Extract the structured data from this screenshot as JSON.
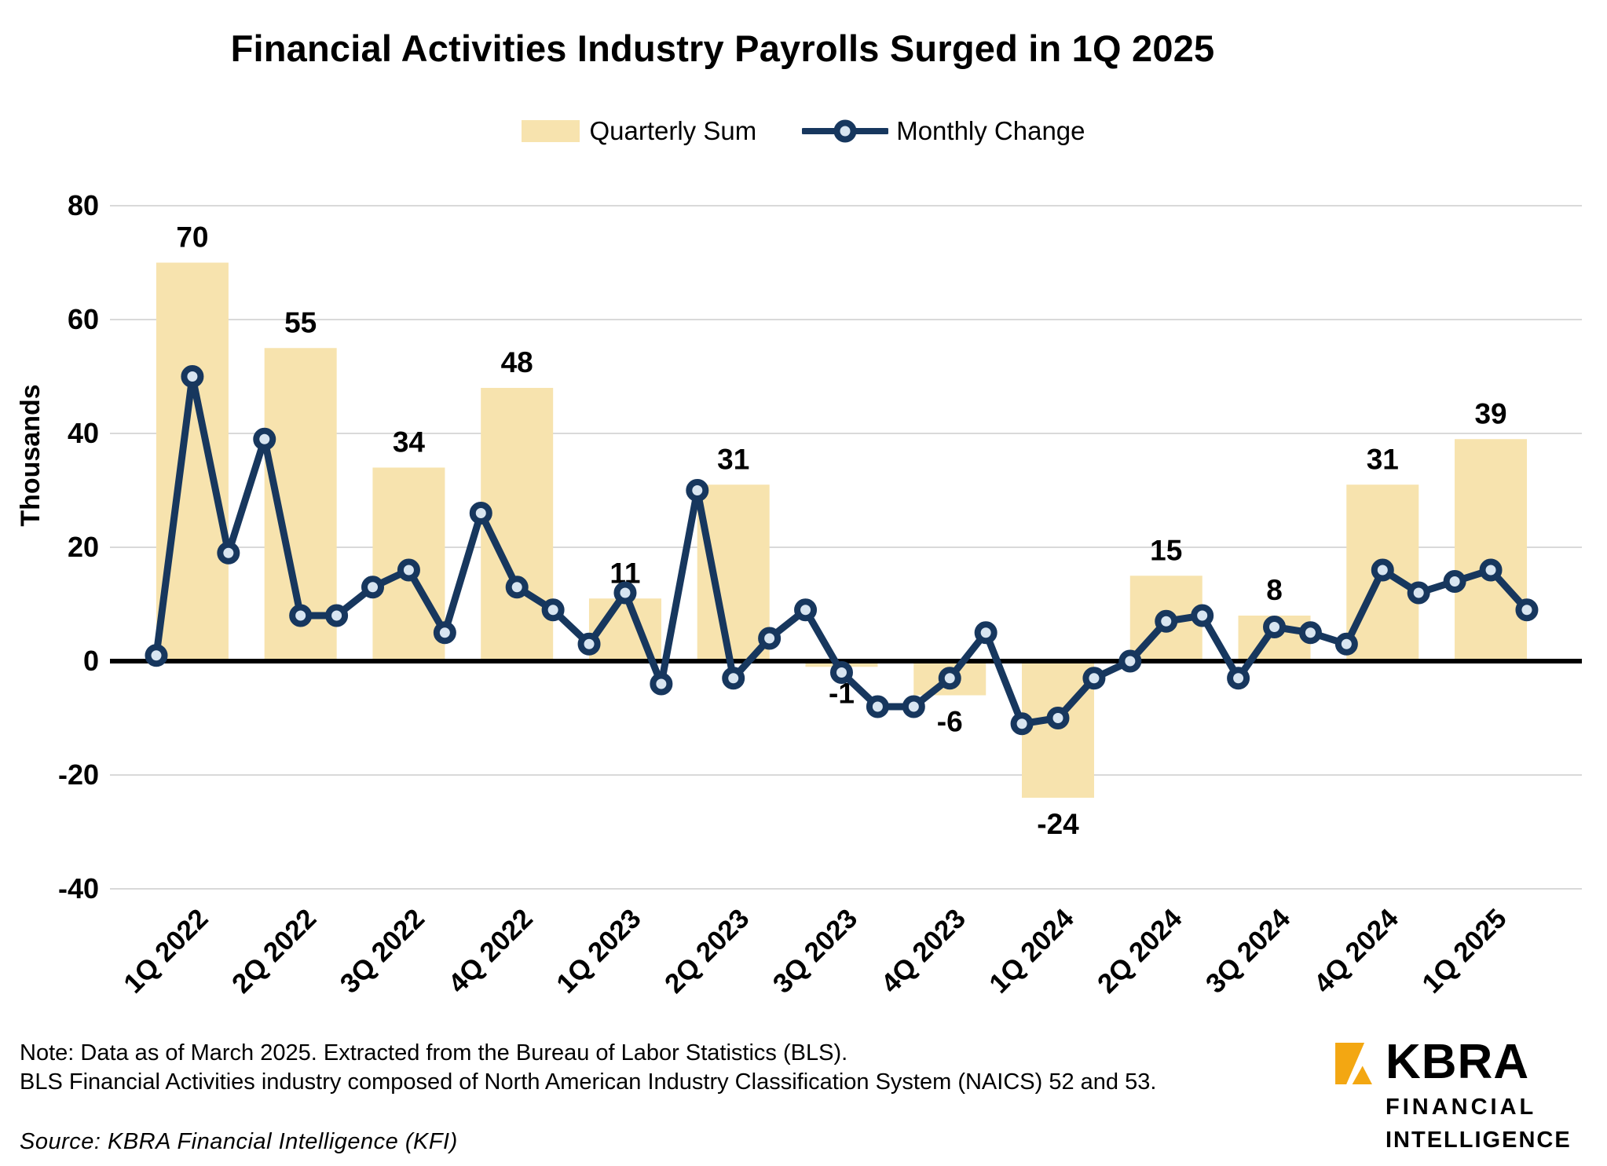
{
  "title": "Financial Activities Industry Payrolls Surged in 1Q 2025",
  "legend": {
    "bar_label": "Quarterly Sum",
    "line_label": "Monthly Change"
  },
  "notes": {
    "line1": "Note: Data as of March 2025. Extracted from the Bureau of Labor Statistics (BLS).",
    "line2": "BLS Financial Activities industry composed of North American Industry Classification System (NAICS) 52 and 53.",
    "source": "Source: KBRA Financial Intelligence (KFI)"
  },
  "logo": {
    "name": "KBRA",
    "line1": "FINANCIAL",
    "line2": "INTELLIGENCE"
  },
  "colors": {
    "bar_fill": "#F7E3AE",
    "line_stroke": "#17375E",
    "marker_fill": "#D8E5F1",
    "grid": "#D9D9D9",
    "zero_axis": "#000000",
    "text": "#000000",
    "logo_gold": "#F3A712"
  },
  "chart_data": {
    "type": "combo-bar-line",
    "title": "Financial Activities Industry Payrolls Surged in 1Q 2025",
    "xlabel": "",
    "ylabel": "Thousands",
    "ylim": [
      -40,
      80
    ],
    "yticks": [
      80,
      60,
      40,
      20,
      0,
      -20,
      -40
    ],
    "grid": true,
    "legend_position": "top-center",
    "categories": [
      "1Q 2022",
      "2Q 2022",
      "3Q 2022",
      "4Q 2022",
      "1Q 2023",
      "2Q 2023",
      "3Q 2023",
      "4Q 2023",
      "1Q 2024",
      "2Q 2024",
      "3Q 2024",
      "4Q 2024",
      "1Q 2025"
    ],
    "bar_series": {
      "name": "Quarterly Sum",
      "values": [
        70,
        55,
        34,
        48,
        11,
        31,
        -1,
        -6,
        -24,
        15,
        8,
        31,
        39
      ]
    },
    "line_series": {
      "name": "Monthly Change",
      "months_per_quarter": 3,
      "values": [
        1,
        50,
        19,
        39,
        8,
        8,
        13,
        16,
        5,
        26,
        13,
        9,
        3,
        12,
        -4,
        30,
        -3,
        4,
        9,
        -2,
        -8,
        -8,
        -3,
        5,
        -11,
        -10,
        -3,
        0,
        7,
        8,
        -3,
        6,
        5,
        3,
        16,
        12,
        14,
        16,
        9
      ]
    }
  }
}
